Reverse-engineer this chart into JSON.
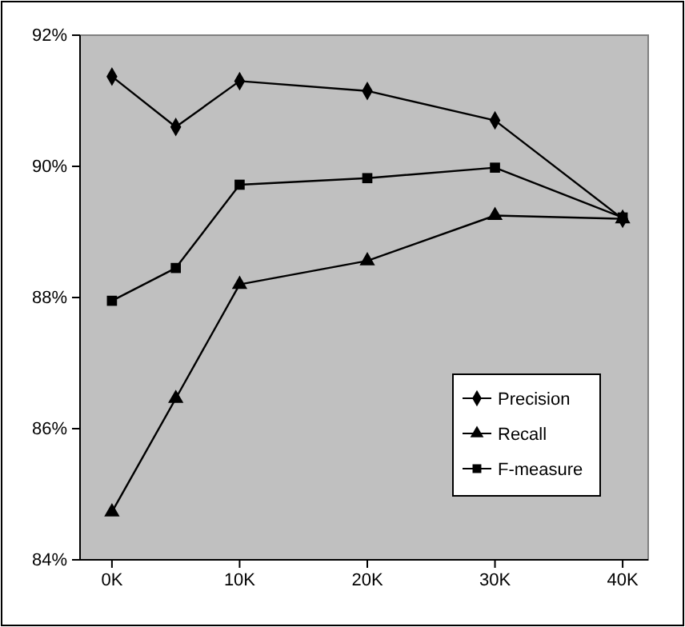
{
  "chart_data": {
    "type": "line",
    "x": [
      0,
      5,
      10,
      20,
      30,
      40
    ],
    "series": [
      {
        "name": "Precision",
        "color": "#000000",
        "marker": "diamond",
        "values": [
          91.37,
          90.6,
          91.3,
          91.15,
          90.7,
          89.2
        ]
      },
      {
        "name": "Recall",
        "color": "#000000",
        "marker": "triangle",
        "values": [
          84.73,
          86.46,
          88.2,
          88.56,
          89.25,
          89.2
        ]
      },
      {
        "name": "F-measure",
        "color": "#000000",
        "marker": "square",
        "values": [
          87.95,
          88.45,
          89.72,
          89.82,
          89.98,
          89.22
        ]
      }
    ],
    "xlim": [
      -2.5,
      42
    ],
    "xticks": [
      {
        "value": 0,
        "label": "0K"
      },
      {
        "value": 10,
        "label": "10K"
      },
      {
        "value": 20,
        "label": "20K"
      },
      {
        "value": 30,
        "label": "30K"
      },
      {
        "value": 40,
        "label": "40K"
      }
    ],
    "ylim": [
      84,
      92
    ],
    "yticks": [
      {
        "value": 84,
        "label": "84%"
      },
      {
        "value": 86,
        "label": "86%"
      },
      {
        "value": 88,
        "label": "88%"
      },
      {
        "value": 90,
        "label": "90%"
      },
      {
        "value": 92,
        "label": "92%"
      }
    ],
    "grid": false,
    "legend": "bottom right",
    "line_style": "solid"
  }
}
